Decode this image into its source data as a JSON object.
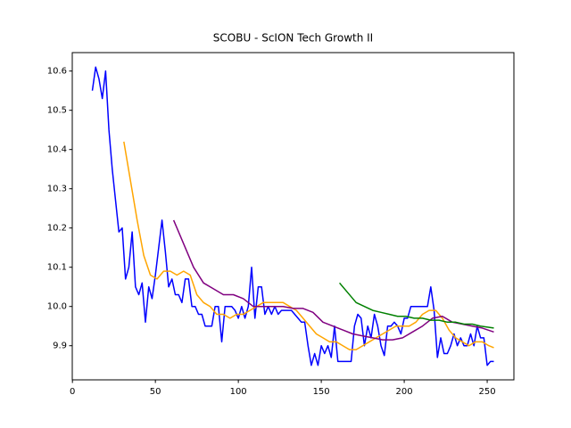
{
  "chart_data": {
    "type": "line",
    "title": "SCOBU - ScION Tech Growth II",
    "xlim": [
      -0.1,
      266.1
    ],
    "xticks": [
      0,
      50,
      100,
      150,
      200,
      250
    ],
    "ylim": [
      9.813,
      10.647
    ],
    "yticks": [
      9.9,
      {
        "value": 10,
        "label": "10.0"
      },
      10.1,
      10.2,
      10.3,
      10.4,
      10.5,
      10.6
    ],
    "series": [
      {
        "color": "#0000ff",
        "x": [
          12,
          14,
          16,
          18,
          20,
          22,
          24,
          26,
          28,
          30,
          32,
          34,
          36,
          38,
          40,
          42,
          44,
          46,
          48,
          50,
          52,
          54,
          56,
          58,
          60,
          62,
          64,
          66,
          68,
          70,
          72,
          74,
          76,
          78,
          80,
          82,
          84,
          86,
          88,
          90,
          92,
          94,
          96,
          98,
          100,
          102,
          104,
          106,
          108,
          110,
          112,
          114,
          116,
          118,
          120,
          122,
          124,
          126,
          128,
          130,
          132,
          134,
          136,
          138,
          140,
          142,
          144,
          146,
          148,
          150,
          152,
          154,
          156,
          158,
          160,
          162,
          164,
          166,
          168,
          170,
          172,
          174,
          176,
          178,
          180,
          182,
          184,
          186,
          188,
          190,
          192,
          194,
          196,
          198,
          200,
          202,
          204,
          206,
          208,
          210,
          212,
          214,
          216,
          218,
          220,
          222,
          224,
          226,
          228,
          230,
          232,
          234,
          236,
          238,
          240,
          242,
          244,
          246,
          248,
          250,
          252,
          254
        ],
        "values": [
          10.55,
          10.61,
          10.58,
          10.53,
          10.6,
          10.45,
          10.35,
          10.27,
          10.19,
          10.2,
          10.07,
          10.1,
          10.19,
          10.05,
          10.03,
          10.06,
          9.96,
          10.05,
          10.02,
          10.08,
          10.15,
          10.22,
          10.14,
          10.05,
          10.07,
          10.03,
          10.03,
          10.01,
          10.07,
          10.07,
          10.0,
          10.0,
          9.98,
          9.98,
          9.95,
          9.95,
          9.95,
          10.0,
          10.0,
          9.91,
          10.0,
          10.0,
          10.0,
          9.99,
          9.97,
          10.0,
          9.97,
          10.0,
          10.1,
          9.97,
          10.05,
          10.05,
          9.98,
          10.0,
          9.98,
          10.0,
          9.98,
          9.99,
          9.99,
          9.99,
          9.99,
          9.98,
          9.97,
          9.96,
          9.96,
          9.9,
          9.85,
          9.88,
          9.85,
          9.9,
          9.88,
          9.9,
          9.87,
          9.95,
          9.86,
          9.86,
          9.86,
          9.86,
          9.86,
          9.95,
          9.98,
          9.97,
          9.9,
          9.95,
          9.92,
          9.98,
          9.95,
          9.9,
          9.875,
          9.95,
          9.95,
          9.96,
          9.95,
          9.93,
          9.97,
          9.97,
          10.0,
          10.0,
          10.0,
          10.0,
          10.0,
          10.0,
          10.05,
          9.99,
          9.87,
          9.92,
          9.88,
          9.88,
          9.9,
          9.93,
          9.9,
          9.92,
          9.9,
          9.9,
          9.93,
          9.9,
          9.95,
          9.92,
          9.92,
          9.85,
          9.86,
          9.86
        ]
      },
      {
        "color": "#ffa500",
        "x": [
          31,
          35,
          39,
          43,
          47,
          51,
          55,
          59,
          63,
          67,
          71,
          75,
          79,
          83,
          87,
          91,
          95,
          99,
          103,
          107,
          111,
          115,
          119,
          123,
          127,
          131,
          135,
          139,
          143,
          147,
          151,
          155,
          159,
          163,
          167,
          171,
          175,
          179,
          183,
          187,
          191,
          195,
          199,
          203,
          207,
          211,
          215,
          219,
          223,
          227,
          231,
          235,
          239,
          243,
          247,
          251,
          254
        ],
        "values": [
          10.42,
          10.32,
          10.22,
          10.13,
          10.08,
          10.07,
          10.09,
          10.09,
          10.08,
          10.09,
          10.08,
          10.03,
          10.01,
          10.0,
          9.98,
          9.98,
          9.97,
          9.98,
          9.98,
          9.99,
          10.0,
          10.01,
          10.01,
          10.01,
          10.01,
          10.0,
          9.99,
          9.97,
          9.95,
          9.93,
          9.92,
          9.91,
          9.91,
          9.9,
          9.89,
          9.89,
          9.9,
          9.91,
          9.92,
          9.93,
          9.94,
          9.95,
          9.95,
          9.95,
          9.96,
          9.98,
          9.99,
          9.99,
          9.97,
          9.94,
          9.92,
          9.91,
          9.9,
          9.91,
          9.91,
          9.9,
          9.895
        ]
      },
      {
        "color": "#800080",
        "x": [
          61,
          67,
          73,
          79,
          85,
          91,
          97,
          103,
          109,
          115,
          121,
          127,
          133,
          139,
          145,
          151,
          157,
          163,
          169,
          175,
          181,
          187,
          193,
          199,
          205,
          211,
          217,
          223,
          229,
          235,
          241,
          247,
          254
        ],
        "values": [
          10.22,
          10.16,
          10.1,
          10.06,
          10.045,
          10.03,
          10.03,
          10.02,
          10.0,
          10.0,
          10.0,
          10.0,
          9.995,
          9.995,
          9.985,
          9.96,
          9.95,
          9.94,
          9.93,
          9.925,
          9.92,
          9.915,
          9.915,
          9.92,
          9.935,
          9.95,
          9.97,
          9.975,
          9.96,
          9.955,
          9.95,
          9.945,
          9.935
        ]
      },
      {
        "color": "#008000",
        "x": [
          161,
          166,
          171,
          176,
          181,
          186,
          191,
          196,
          201,
          206,
          211,
          216,
          221,
          226,
          231,
          236,
          241,
          246,
          254
        ],
        "values": [
          10.06,
          10.035,
          10.01,
          10.0,
          9.99,
          9.985,
          9.98,
          9.975,
          9.975,
          9.97,
          9.97,
          9.965,
          9.965,
          9.96,
          9.96,
          9.955,
          9.955,
          9.95,
          9.945
        ]
      }
    ]
  }
}
